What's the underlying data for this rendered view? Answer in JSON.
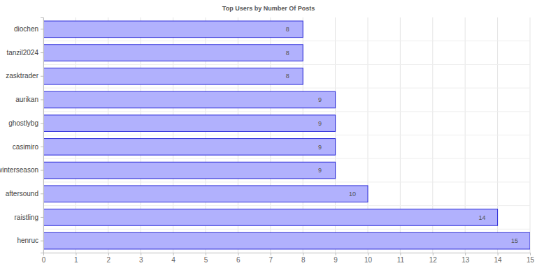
{
  "chart_data": {
    "type": "bar",
    "title": "Top Users by Number Of Posts",
    "orientation": "horizontal",
    "categories": [
      "diochen",
      "tanzil2024",
      "zasktrader",
      "aurikan",
      "ghostlybg",
      "casimiro",
      "winterseason",
      "aftersound",
      "raistling",
      "henruc"
    ],
    "values": [
      8,
      8,
      8,
      9,
      9,
      9,
      9,
      10,
      14,
      15
    ],
    "color": "#b1b1fd",
    "xlim": [
      0,
      15
    ],
    "xticks": [
      0,
      1,
      2,
      3,
      4,
      5,
      6,
      7,
      8,
      9,
      10,
      11,
      12,
      13,
      14,
      15
    ],
    "grid": true,
    "data_labels": true
  }
}
